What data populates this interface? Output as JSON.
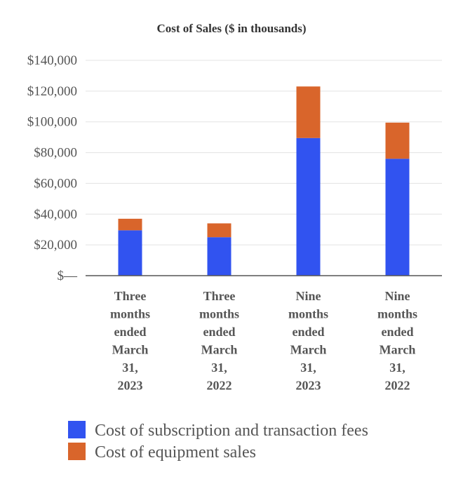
{
  "chart_data": {
    "type": "bar",
    "stacked": true,
    "title": "Cost of Sales ($ in thousands)",
    "xlabel": "",
    "ylabel": "",
    "ylim": [
      0,
      140000
    ],
    "yticks": [
      0,
      20000,
      40000,
      60000,
      80000,
      100000,
      120000,
      140000
    ],
    "ytick_labels": [
      "$—",
      "$20,000",
      "$40,000",
      "$60,000",
      "$80,000",
      "$100,000",
      "$120,000",
      "$140,000"
    ],
    "grid": true,
    "legend_position": "bottom-left",
    "categories": [
      [
        "Three",
        "months",
        "ended",
        "March",
        "31,",
        "2023"
      ],
      [
        "Three",
        "months",
        "ended",
        "March",
        "31,",
        "2022"
      ],
      [
        "Nine",
        "months",
        "ended",
        "March",
        "31,",
        "2023"
      ],
      [
        "Nine",
        "months",
        "ended",
        "March",
        "31,",
        "2022"
      ]
    ],
    "series": [
      {
        "name": "Cost of subscription and transaction fees",
        "color": "#3153F0",
        "values": [
          29500,
          25000,
          89500,
          76000
        ]
      },
      {
        "name": "Cost of equipment sales",
        "color": "#D9652B",
        "values": [
          7500,
          9000,
          33500,
          23500
        ]
      }
    ]
  }
}
